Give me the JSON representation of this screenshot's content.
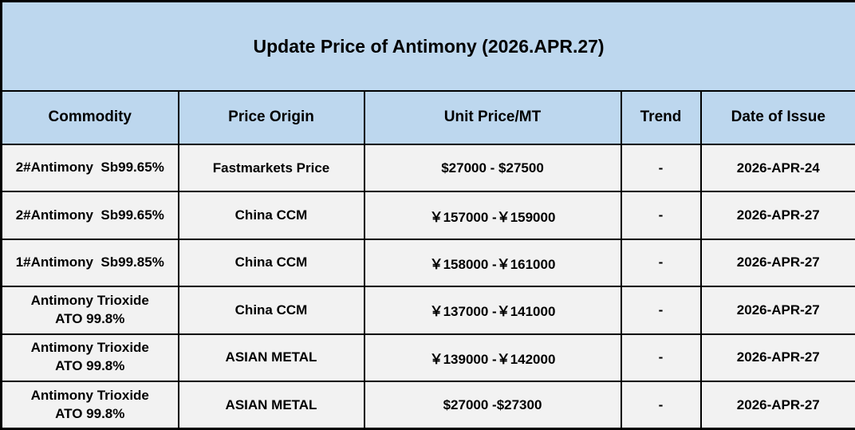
{
  "table": {
    "title": "Update Price of Antimony (2026.APR.27)",
    "columns": {
      "commodity": "Commodity",
      "origin": "Price Origin",
      "price": "Unit Price/MT",
      "trend": "Trend",
      "date": "Date of Issue"
    },
    "rows": [
      {
        "commodity": "2#Antimony  Sb99.65%",
        "origin": "Fastmarkets Price",
        "price": "$27000 - $27500",
        "trend": "-",
        "date": "2026-APR-24"
      },
      {
        "commodity": "2#Antimony  Sb99.65%",
        "origin": "China CCM",
        "price": "￥157000 -￥159000",
        "trend": "-",
        "date": "2026-APR-27"
      },
      {
        "commodity": "1#Antimony  Sb99.85%",
        "origin": "China CCM",
        "price": "￥158000 -￥161000",
        "trend": "-",
        "date": "2026-APR-27"
      },
      {
        "commodity": "Antimony Trioxide\nATO 99.8%",
        "origin": "China CCM",
        "price": "￥137000 -￥141000",
        "trend": "-",
        "date": "2026-APR-27"
      },
      {
        "commodity": "Antimony Trioxide\nATO 99.8%",
        "origin": "ASIAN METAL",
        "price": "￥139000 -￥142000",
        "trend": "-",
        "date": "2026-APR-27"
      },
      {
        "commodity": "Antimony Trioxide\nATO 99.8%",
        "origin": "ASIAN METAL",
        "price": "$27000 -$27300",
        "trend": "-",
        "date": "2026-APR-27"
      }
    ],
    "colors": {
      "header_bg": "#BDD7EE",
      "row_bg": "#F2F2F2",
      "border": "#000000",
      "text": "#000000"
    }
  }
}
